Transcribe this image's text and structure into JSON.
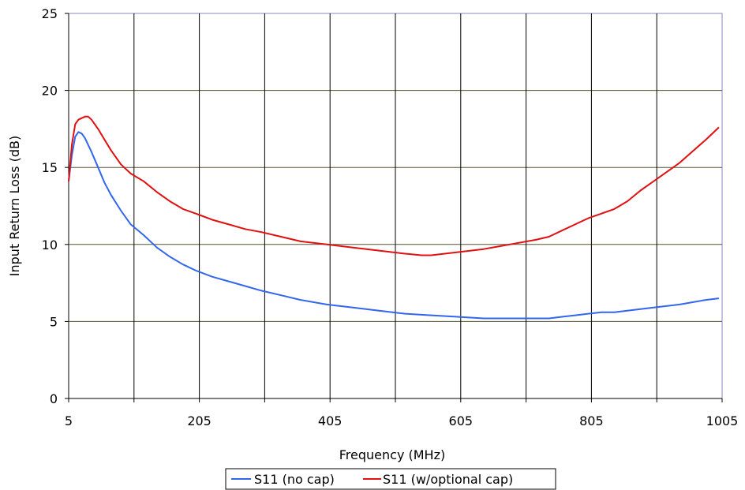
{
  "chart_data": {
    "type": "line",
    "xlabel": "Frequency (MHz)",
    "ylabel": "Input Return Loss (dB)",
    "xlim": [
      5,
      1005
    ],
    "ylim": [
      0,
      25
    ],
    "x_ticks": [
      5,
      205,
      405,
      605,
      805,
      1005
    ],
    "x_gridlines": [
      105,
      205,
      305,
      405,
      505,
      605,
      705,
      805,
      905
    ],
    "y_ticks": [
      0,
      5,
      10,
      15,
      20,
      25
    ],
    "grid": "vertical and horizontal",
    "legend_position": "bottom",
    "series": [
      {
        "name": "S11 (no cap)",
        "color": "#3366ee",
        "x": [
          5,
          10,
          15,
          20,
          25,
          30,
          40,
          50,
          60,
          70,
          85,
          100,
          120,
          140,
          160,
          180,
          200,
          225,
          250,
          275,
          300,
          330,
          360,
          400,
          440,
          480,
          520,
          560,
          600,
          640,
          680,
          720,
          740,
          760,
          780,
          800,
          820,
          840,
          860,
          880,
          900,
          940,
          980,
          1000
        ],
        "y": [
          14.1,
          15.8,
          17.0,
          17.3,
          17.2,
          16.9,
          16.0,
          15.0,
          14.0,
          13.2,
          12.2,
          11.3,
          10.6,
          9.8,
          9.2,
          8.7,
          8.3,
          7.9,
          7.6,
          7.3,
          7.0,
          6.7,
          6.4,
          6.1,
          5.9,
          5.7,
          5.5,
          5.4,
          5.3,
          5.2,
          5.2,
          5.2,
          5.2,
          5.3,
          5.4,
          5.5,
          5.6,
          5.6,
          5.7,
          5.8,
          5.9,
          6.1,
          6.4,
          6.5
        ]
      },
      {
        "name": "S11 (w/optional cap)",
        "color": "#e01010",
        "x": [
          5,
          10,
          15,
          20,
          25,
          30,
          35,
          40,
          50,
          60,
          70,
          85,
          100,
          120,
          140,
          160,
          180,
          200,
          225,
          250,
          275,
          300,
          330,
          360,
          400,
          440,
          480,
          520,
          545,
          560,
          600,
          640,
          680,
          720,
          740,
          760,
          780,
          800,
          820,
          840,
          860,
          880,
          900,
          940,
          980,
          1000
        ],
        "y": [
          14.1,
          16.5,
          17.8,
          18.1,
          18.2,
          18.3,
          18.3,
          18.1,
          17.5,
          16.8,
          16.1,
          15.2,
          14.6,
          14.1,
          13.4,
          12.8,
          12.3,
          12.0,
          11.6,
          11.3,
          11.0,
          10.8,
          10.5,
          10.2,
          10.0,
          9.8,
          9.6,
          9.4,
          9.3,
          9.3,
          9.5,
          9.7,
          10.0,
          10.3,
          10.5,
          10.9,
          11.3,
          11.7,
          12.0,
          12.3,
          12.8,
          13.5,
          14.1,
          15.3,
          16.8,
          17.6
        ]
      }
    ]
  }
}
